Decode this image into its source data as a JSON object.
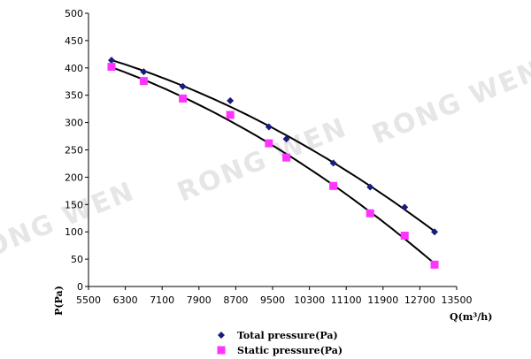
{
  "watermark": {
    "text": "RONG WEN"
  },
  "chart_data": {
    "type": "scatter",
    "title": "",
    "xlabel": "Q(m³/h)",
    "ylabel": "P(Pa)",
    "xlim": [
      5500,
      13500
    ],
    "ylim": [
      0,
      500
    ],
    "x_ticks": [
      5500,
      6300,
      7100,
      7900,
      8700,
      9500,
      10300,
      11100,
      11900,
      12700,
      13500
    ],
    "y_ticks": [
      0,
      50,
      100,
      150,
      200,
      250,
      300,
      350,
      400,
      450,
      500
    ],
    "grid": false,
    "legend_position": "bottom",
    "trendlines": true,
    "series": [
      {
        "name": "Total pressure(Pa)",
        "marker": "diamond",
        "color": "#1a1a80",
        "x": [
          6000,
          6700,
          7550,
          8580,
          9420,
          9800,
          10820,
          11620,
          12370,
          13020
        ],
        "y": [
          414,
          393,
          366,
          340,
          292,
          270,
          226,
          182,
          145,
          100
        ]
      },
      {
        "name": "Static pressure(Pa)",
        "marker": "square",
        "color": "#ff33ff",
        "x": [
          6000,
          6700,
          7550,
          8580,
          9420,
          9800,
          10820,
          11620,
          12370,
          13020
        ],
        "y": [
          402,
          376,
          344,
          314,
          262,
          236,
          184,
          134,
          93,
          40
        ]
      }
    ]
  }
}
